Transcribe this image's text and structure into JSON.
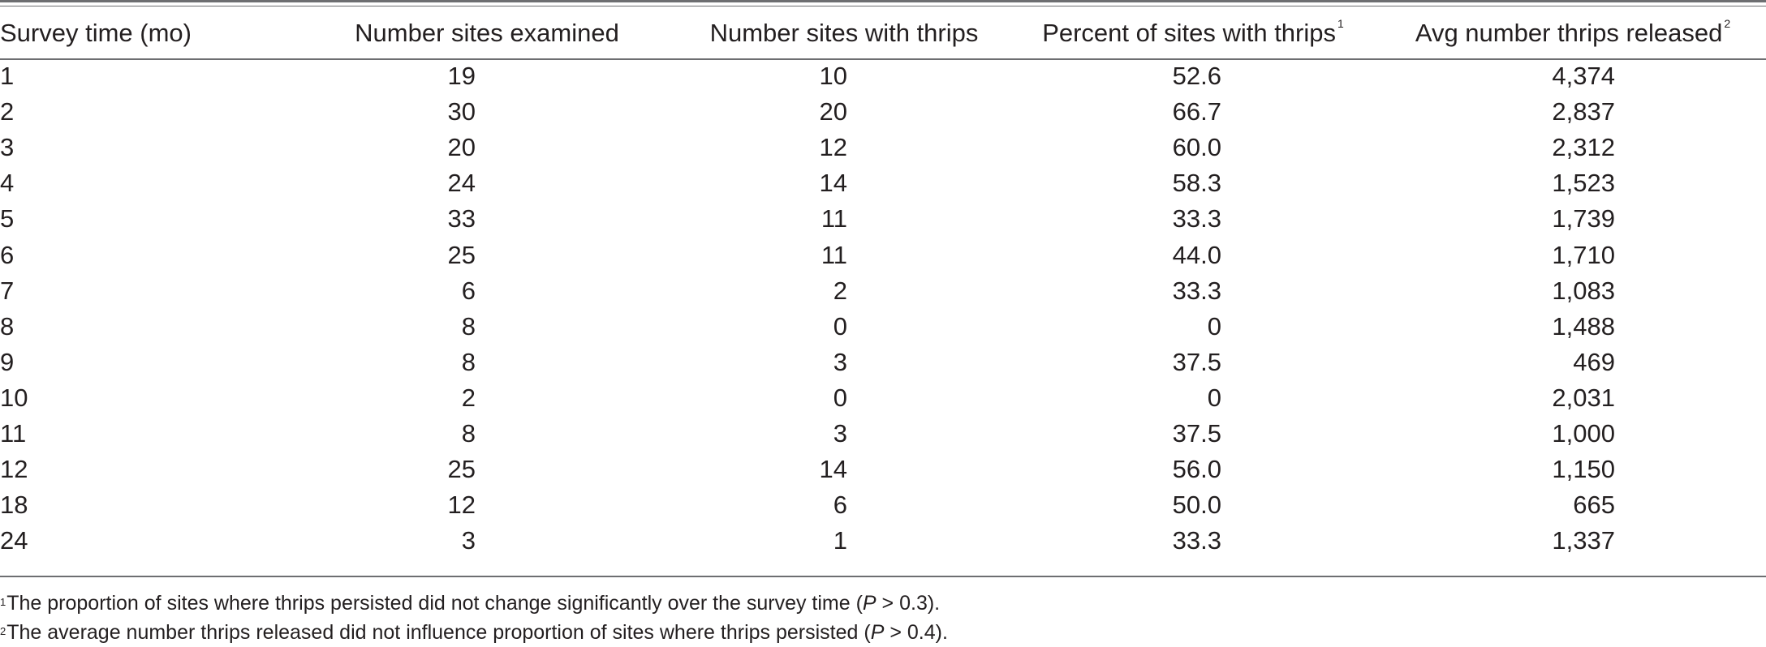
{
  "table": {
    "headers": [
      {
        "label": "Survey time (mo)",
        "note": ""
      },
      {
        "label": "Number sites examined",
        "note": ""
      },
      {
        "label": "Number sites with thrips",
        "note": ""
      },
      {
        "label": "Percent of sites with thrips",
        "note": "1"
      },
      {
        "label": "Avg number thrips released",
        "note": "2"
      }
    ],
    "rows": [
      [
        "1",
        "19",
        "10",
        "52.6",
        "4,374"
      ],
      [
        "2",
        "30",
        "20",
        "66.7",
        "2,837"
      ],
      [
        "3",
        "20",
        "12",
        "60.0",
        "2,312"
      ],
      [
        "4",
        "24",
        "14",
        "58.3",
        "1,523"
      ],
      [
        "5",
        "33",
        "11",
        "33.3",
        "1,739"
      ],
      [
        "6",
        "25",
        "11",
        "44.0",
        "1,710"
      ],
      [
        "7",
        "6",
        "2",
        "33.3",
        "1,083"
      ],
      [
        "8",
        "8",
        "0",
        "0",
        "1,488"
      ],
      [
        "9",
        "8",
        "3",
        "37.5",
        "469"
      ],
      [
        "10",
        "2",
        "0",
        "0",
        "2,031"
      ],
      [
        "11",
        "8",
        "3",
        "37.5",
        "1,000"
      ],
      [
        "12",
        "25",
        "14",
        "56.0",
        "1,150"
      ],
      [
        "18",
        "12",
        "6",
        "50.0",
        "665"
      ],
      [
        "24",
        "3",
        "1",
        "33.3",
        "1,337"
      ]
    ]
  },
  "footnotes": [
    {
      "mark": "1",
      "text_before": "The proportion of sites where thrips persisted did not change significantly over the survey time (",
      "italic": "P",
      "text_after": " > 0.3)."
    },
    {
      "mark": "2",
      "text_before": "The average number thrips released did not influence proportion of sites where thrips persisted (",
      "italic": "P",
      "text_after": " > 0.4)."
    }
  ]
}
